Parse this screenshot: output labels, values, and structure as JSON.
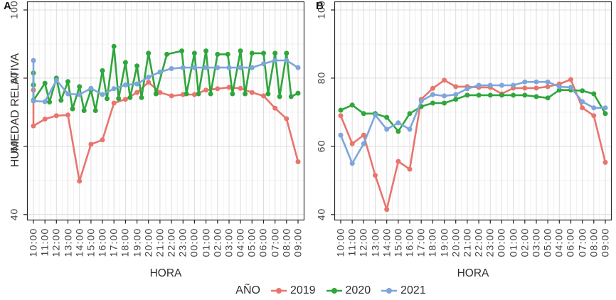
{
  "figure": {
    "y_axis_title": "HUMEDAD RELATIVA",
    "x_axis_title": "HORA",
    "background": "#ffffff",
    "grid_major_color": "#dcdcdc",
    "grid_minor_color": "#f0f0f0",
    "panel_border_color": "#262626",
    "legend": {
      "title": "AÑO",
      "position": "bottom",
      "items": [
        {
          "label": "2019",
          "color": "#e8756d"
        },
        {
          "label": "2020",
          "color": "#2fa63c"
        },
        {
          "label": "2021",
          "color": "#7ca6db"
        }
      ]
    }
  },
  "chart_data": [
    {
      "type": "line",
      "panel_label": "A",
      "xlabel": "HORA",
      "ylabel": "HUMEDAD RELATIVA",
      "ylim": [
        38.3,
        102.5
      ],
      "y_ticks": [
        40,
        60,
        80,
        100
      ],
      "y_minor": [
        50,
        70,
        90
      ],
      "grid": true,
      "x_ticks": [
        "10:00",
        "11:00",
        "12:00",
        "13:00",
        "14:00",
        "15:00",
        "16:00",
        "17:00",
        "18:00",
        "19:00",
        "20:00",
        "21:00",
        "22:00",
        "23:00",
        "00:00",
        "01:00",
        "02:00",
        "03:00",
        "04:00",
        "05:00",
        "06:00",
        "07:00",
        "08:00",
        "09:00"
      ],
      "series": [
        {
          "name": "2019",
          "color": "#e8756d",
          "points": [
            [
              0,
              76.5
            ],
            [
              0,
              66
            ],
            [
              1,
              68
            ],
            [
              2,
              69
            ],
            [
              3,
              69.2
            ],
            [
              4,
              49.8
            ],
            [
              5,
              60.6
            ],
            [
              6,
              61.9
            ],
            [
              7,
              72.7
            ],
            [
              8,
              73.8
            ],
            [
              9,
              75.8
            ],
            [
              10,
              78.8
            ],
            [
              11,
              75.8
            ],
            [
              12,
              74.8
            ],
            [
              13,
              75.2
            ],
            [
              14,
              75.2
            ],
            [
              15,
              76.5
            ],
            [
              16,
              76.9
            ],
            [
              17,
              77.3
            ],
            [
              18,
              77
            ],
            [
              19,
              75.8
            ],
            [
              20,
              74.8
            ],
            [
              21,
              71.2
            ],
            [
              22,
              68.1
            ],
            [
              23,
              55.5
            ]
          ]
        },
        {
          "name": "2020",
          "color": "#2fa63c",
          "points": [
            [
              0,
              81.5
            ],
            [
              0,
              78
            ],
            [
              0,
              73.5
            ],
            [
              1,
              78.5
            ],
            [
              1.4,
              73
            ],
            [
              2,
              80
            ],
            [
              2.4,
              73.5
            ],
            [
              3,
              79
            ],
            [
              3.4,
              71
            ],
            [
              4,
              77.5
            ],
            [
              4.4,
              70.5
            ],
            [
              5,
              76.5
            ],
            [
              5.4,
              70.5
            ],
            [
              6,
              82.2
            ],
            [
              6.4,
              74
            ],
            [
              7,
              89.3
            ],
            [
              7.4,
              74
            ],
            [
              8,
              84.6
            ],
            [
              8.4,
              74.3
            ],
            [
              9,
              83.6
            ],
            [
              9.4,
              74.3
            ],
            [
              10,
              87.3
            ],
            [
              10.65,
              75.4
            ],
            [
              11.6,
              87
            ],
            [
              12.9,
              88
            ],
            [
              13.3,
              75.4
            ],
            [
              14,
              87.3
            ],
            [
              14.35,
              75.4
            ],
            [
              15,
              88
            ],
            [
              15.4,
              75.4
            ],
            [
              16,
              87
            ],
            [
              16.9,
              87
            ],
            [
              17.3,
              75.4
            ],
            [
              18,
              88
            ],
            [
              18.4,
              75.4
            ],
            [
              19,
              87.3
            ],
            [
              20,
              87.3
            ],
            [
              20.4,
              75.4
            ],
            [
              21,
              87.3
            ],
            [
              21.4,
              74.6
            ],
            [
              22,
              87.3
            ],
            [
              22.4,
              74.6
            ],
            [
              23,
              75.6
            ]
          ]
        },
        {
          "name": "2021",
          "color": "#7ca6db",
          "points": [
            [
              0,
              85.2
            ],
            [
              0,
              73.3
            ],
            [
              1,
              73.1
            ],
            [
              2,
              79.4
            ],
            [
              3,
              75.4
            ],
            [
              4,
              75.2
            ],
            [
              5,
              77
            ],
            [
              6,
              75.2
            ],
            [
              7,
              76.9
            ],
            [
              8,
              78
            ],
            [
              9,
              78.3
            ],
            [
              10,
              80.3
            ],
            [
              11,
              81.8
            ],
            [
              12,
              82.8
            ],
            [
              13,
              83.1
            ],
            [
              14,
              83.1
            ],
            [
              15,
              83.1
            ],
            [
              16,
              83.1
            ],
            [
              17,
              83.1
            ],
            [
              18,
              83.1
            ],
            [
              19,
              83.1
            ],
            [
              20,
              84.2
            ],
            [
              21,
              85.2
            ],
            [
              22,
              85.2
            ],
            [
              23,
              83.1
            ]
          ]
        }
      ]
    },
    {
      "type": "line",
      "panel_label": "B",
      "xlabel": "HORA",
      "ylabel": "HUMEDAD RELATIVA",
      "ylim": [
        38.3,
        102.5
      ],
      "y_ticks": [
        40,
        60,
        80,
        100
      ],
      "y_minor": [
        50,
        70,
        90
      ],
      "grid": true,
      "x_ticks": [
        "10:00",
        "11:00",
        "12:00",
        "13:00",
        "14:00",
        "15:00",
        "16:00",
        "17:00",
        "18:00",
        "19:00",
        "20:00",
        "21:00",
        "22:00",
        "23:00",
        "00:00",
        "01:00",
        "02:00",
        "03:00",
        "05:00",
        "04:00",
        "06:00",
        "07:00",
        "08:00",
        "09:00"
      ],
      "series": [
        {
          "name": "2019",
          "color": "#e8756d",
          "points": [
            [
              0,
              69
            ],
            [
              1,
              60.8
            ],
            [
              2,
              63.3
            ],
            [
              3,
              51.5
            ],
            [
              4,
              41.5
            ],
            [
              5,
              55.6
            ],
            [
              6,
              53.3
            ],
            [
              7,
              73.8
            ],
            [
              8,
              77
            ],
            [
              9,
              79.4
            ],
            [
              10,
              77.5
            ],
            [
              11,
              77.5
            ],
            [
              12,
              77.3
            ],
            [
              13,
              77.3
            ],
            [
              14,
              75.4
            ],
            [
              15,
              77.1
            ],
            [
              16,
              77.1
            ],
            [
              17,
              77.1
            ],
            [
              18,
              77.5
            ],
            [
              19,
              78.3
            ],
            [
              20,
              79.6
            ],
            [
              21,
              71.3
            ],
            [
              22,
              69
            ],
            [
              23,
              55.3
            ]
          ]
        },
        {
          "name": "2020",
          "color": "#2fa63c",
          "points": [
            [
              0,
              70.6
            ],
            [
              1,
              72.1
            ],
            [
              2,
              69.6
            ],
            [
              3,
              69.6
            ],
            [
              4,
              68.5
            ],
            [
              5,
              64.4
            ],
            [
              6,
              69.6
            ],
            [
              7,
              71.7
            ],
            [
              8,
              72.7
            ],
            [
              9,
              72.7
            ],
            [
              10,
              73.8
            ],
            [
              11,
              75
            ],
            [
              12,
              75
            ],
            [
              13,
              75
            ],
            [
              14,
              75
            ],
            [
              15,
              75
            ],
            [
              16,
              75
            ],
            [
              17,
              74.6
            ],
            [
              18,
              74.2
            ],
            [
              19,
              76.5
            ],
            [
              20,
              76.5
            ],
            [
              21,
              76.3
            ],
            [
              22,
              75.4
            ],
            [
              23,
              69.6
            ]
          ]
        },
        {
          "name": "2021",
          "color": "#7ca6db",
          "points": [
            [
              0,
              63.3
            ],
            [
              1,
              55
            ],
            [
              2,
              60.8
            ],
            [
              3,
              69.2
            ],
            [
              4,
              65
            ],
            [
              5,
              66.9
            ],
            [
              6,
              65
            ],
            [
              7,
              73.3
            ],
            [
              8,
              75.2
            ],
            [
              9,
              74.8
            ],
            [
              10,
              75.2
            ],
            [
              11,
              76.9
            ],
            [
              12,
              77.9
            ],
            [
              13,
              77.9
            ],
            [
              14,
              77.9
            ],
            [
              15,
              77.9
            ],
            [
              16,
              78.9
            ],
            [
              17,
              78.9
            ],
            [
              18,
              78.9
            ],
            [
              19,
              77.5
            ],
            [
              20,
              77.3
            ],
            [
              21,
              73.1
            ],
            [
              22,
              71.3
            ],
            [
              23,
              71.3
            ]
          ]
        }
      ]
    }
  ]
}
